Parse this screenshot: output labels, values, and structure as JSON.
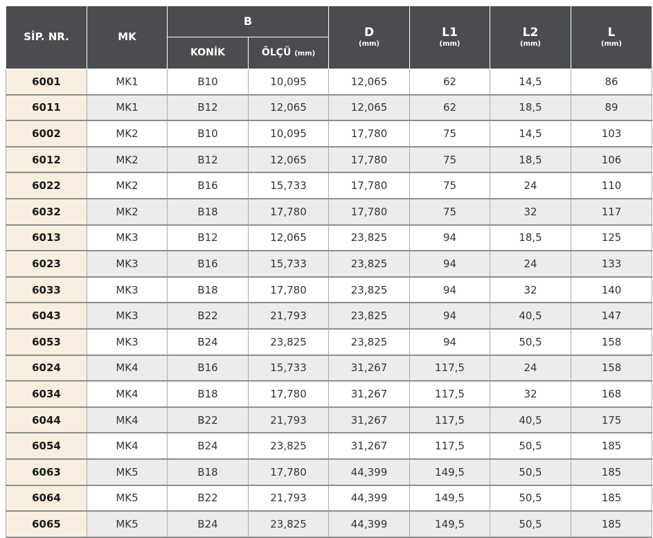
{
  "headers": {
    "sip": "SİP. NR.",
    "mk": "MK",
    "b": "B",
    "konik": "KONİK",
    "olcu": "ÖLÇÜ",
    "olcu_unit": "(mm)",
    "d": "D",
    "d_unit": "(mm)",
    "l1": "L1",
    "l1_unit": "(mm)",
    "l2": "L2",
    "l2_unit": "(mm)",
    "l": "L",
    "l_unit": "(mm)"
  },
  "rows": [
    {
      "sip": "6001",
      "mk": "MK1",
      "konik": "B10",
      "olcu": "10,095",
      "d": "12,065",
      "l1": "62",
      "l2": "14,5",
      "l": "86"
    },
    {
      "sip": "6011",
      "mk": "MK1",
      "konik": "B12",
      "olcu": "12,065",
      "d": "12,065",
      "l1": "62",
      "l2": "18,5",
      "l": "89"
    },
    {
      "sip": "6002",
      "mk": "MK2",
      "konik": "B10",
      "olcu": "10,095",
      "d": "17,780",
      "l1": "75",
      "l2": "14,5",
      "l": "103"
    },
    {
      "sip": "6012",
      "mk": "MK2",
      "konik": "B12",
      "olcu": "12,065",
      "d": "17,780",
      "l1": "75",
      "l2": "18,5",
      "l": "106"
    },
    {
      "sip": "6022",
      "mk": "MK2",
      "konik": "B16",
      "olcu": "15,733",
      "d": "17,780",
      "l1": "75",
      "l2": "24",
      "l": "110"
    },
    {
      "sip": "6032",
      "mk": "MK2",
      "konik": "B18",
      "olcu": "17,780",
      "d": "17,780",
      "l1": "75",
      "l2": "32",
      "l": "117"
    },
    {
      "sip": "6013",
      "mk": "MK3",
      "konik": "B12",
      "olcu": "12,065",
      "d": "23,825",
      "l1": "94",
      "l2": "18,5",
      "l": "125"
    },
    {
      "sip": "6023",
      "mk": "MK3",
      "konik": "B16",
      "olcu": "15,733",
      "d": "23,825",
      "l1": "94",
      "l2": "24",
      "l": "133"
    },
    {
      "sip": "6033",
      "mk": "MK3",
      "konik": "B18",
      "olcu": "17,780",
      "d": "23,825",
      "l1": "94",
      "l2": "32",
      "l": "140"
    },
    {
      "sip": "6043",
      "mk": "MK3",
      "konik": "B22",
      "olcu": "21,793",
      "d": "23,825",
      "l1": "94",
      "l2": "40,5",
      "l": "147"
    },
    {
      "sip": "6053",
      "mk": "MK3",
      "konik": "B24",
      "olcu": "23,825",
      "d": "23,825",
      "l1": "94",
      "l2": "50,5",
      "l": "158"
    },
    {
      "sip": "6024",
      "mk": "MK4",
      "konik": "B16",
      "olcu": "15,733",
      "d": "31,267",
      "l1": "117,5",
      "l2": "24",
      "l": "158"
    },
    {
      "sip": "6034",
      "mk": "MK4",
      "konik": "B18",
      "olcu": "17,780",
      "d": "31,267",
      "l1": "117,5",
      "l2": "32",
      "l": "168"
    },
    {
      "sip": "6044",
      "mk": "MK4",
      "konik": "B22",
      "olcu": "21,793",
      "d": "31,267",
      "l1": "117,5",
      "l2": "40,5",
      "l": "175"
    },
    {
      "sip": "6054",
      "mk": "MK4",
      "konik": "B24",
      "olcu": "23,825",
      "d": "31,267",
      "l1": "117,5",
      "l2": "50,5",
      "l": "185"
    },
    {
      "sip": "6063",
      "mk": "MK5",
      "konik": "B18",
      "olcu": "17,780",
      "d": "44,399",
      "l1": "149,5",
      "l2": "50,5",
      "l": "185"
    },
    {
      "sip": "6064",
      "mk": "MK5",
      "konik": "B22",
      "olcu": "21,793",
      "d": "44,399",
      "l1": "149,5",
      "l2": "50,5",
      "l": "185"
    },
    {
      "sip": "6065",
      "mk": "MK5",
      "konik": "B24",
      "olcu": "23,825",
      "d": "44,399",
      "l1": "149,5",
      "l2": "50,5",
      "l": "185"
    }
  ]
}
